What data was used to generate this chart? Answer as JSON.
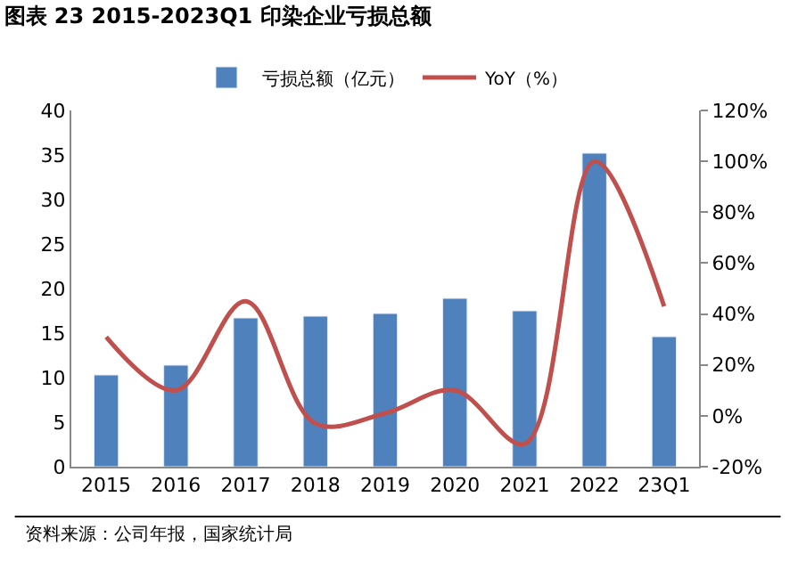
{
  "chart_data": {
    "type": "bar",
    "title": "图表 23 2015-2023Q1 印染企业亏损总额",
    "categories": [
      "2015",
      "2016",
      "2017",
      "2018",
      "2019",
      "2020",
      "2021",
      "2022",
      "23Q1"
    ],
    "series": [
      {
        "name": "亏损总额（亿元）",
        "color": "#4f81bd",
        "values": [
          10.3,
          11.4,
          16.7,
          16.9,
          17.2,
          18.9,
          17.5,
          35.2,
          14.6
        ]
      },
      {
        "name": "YoY（%）",
        "type": "line",
        "axis": "y2",
        "color": "#c0504d",
        "values": [
          31,
          10,
          45,
          -3,
          1,
          10,
          -11,
          100,
          43
        ]
      }
    ],
    "ylim": [
      0,
      40
    ],
    "yticks": [
      0,
      5,
      10,
      15,
      20,
      25,
      30,
      35,
      40
    ],
    "y2lim": [
      -20,
      120
    ],
    "y2ticks": [
      {
        "value": -20,
        "label": "-20%"
      },
      {
        "value": 0,
        "label": "0%"
      },
      {
        "value": 20,
        "label": "20%"
      },
      {
        "value": 40,
        "label": "40%"
      },
      {
        "value": 60,
        "label": "60%"
      },
      {
        "value": 80,
        "label": "80%"
      },
      {
        "value": 100,
        "label": "100%"
      },
      {
        "value": 120,
        "label": "120%"
      }
    ],
    "legend": "top",
    "marker": "none",
    "line_style": "solid",
    "annotations": [
      "资料来源：公司年报，国家统计局"
    ]
  }
}
